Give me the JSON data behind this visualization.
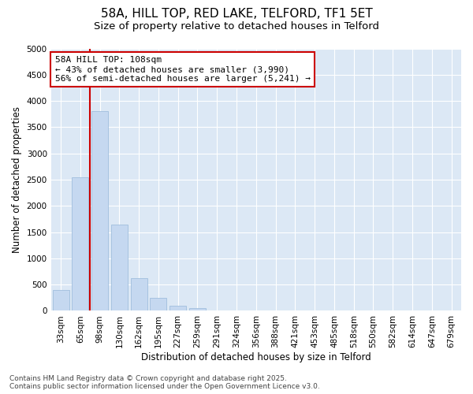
{
  "title1": "58A, HILL TOP, RED LAKE, TELFORD, TF1 5ET",
  "title2": "Size of property relative to detached houses in Telford",
  "xlabel": "Distribution of detached houses by size in Telford",
  "ylabel": "Number of detached properties",
  "categories": [
    "33sqm",
    "65sqm",
    "98sqm",
    "130sqm",
    "162sqm",
    "195sqm",
    "227sqm",
    "259sqm",
    "291sqm",
    "324sqm",
    "356sqm",
    "388sqm",
    "421sqm",
    "453sqm",
    "485sqm",
    "518sqm",
    "550sqm",
    "582sqm",
    "614sqm",
    "647sqm",
    "679sqm"
  ],
  "values": [
    400,
    2550,
    3800,
    1650,
    625,
    250,
    100,
    50,
    5,
    5,
    0,
    0,
    0,
    0,
    0,
    0,
    0,
    0,
    0,
    0,
    0
  ],
  "bar_color": "#c5d8f0",
  "bar_edgecolor": "#a0bedd",
  "vline_x_index": 2,
  "vline_color": "#cc0000",
  "annotation_text": "58A HILL TOP: 108sqm\n← 43% of detached houses are smaller (3,990)\n56% of semi-detached houses are larger (5,241) →",
  "annotation_box_facecolor": "#ffffff",
  "annotation_box_edgecolor": "#cc0000",
  "ylim": [
    0,
    5000
  ],
  "yticks": [
    0,
    500,
    1000,
    1500,
    2000,
    2500,
    3000,
    3500,
    4000,
    4500,
    5000
  ],
  "figure_background": "#ffffff",
  "axes_background": "#dce8f5",
  "grid_color": "#ffffff",
  "footer1": "Contains HM Land Registry data © Crown copyright and database right 2025.",
  "footer2": "Contains public sector information licensed under the Open Government Licence v3.0.",
  "title1_fontsize": 11,
  "title2_fontsize": 9.5,
  "tick_fontsize": 7.5,
  "ylabel_fontsize": 8.5,
  "xlabel_fontsize": 8.5,
  "annotation_fontsize": 8,
  "footer_fontsize": 6.5
}
